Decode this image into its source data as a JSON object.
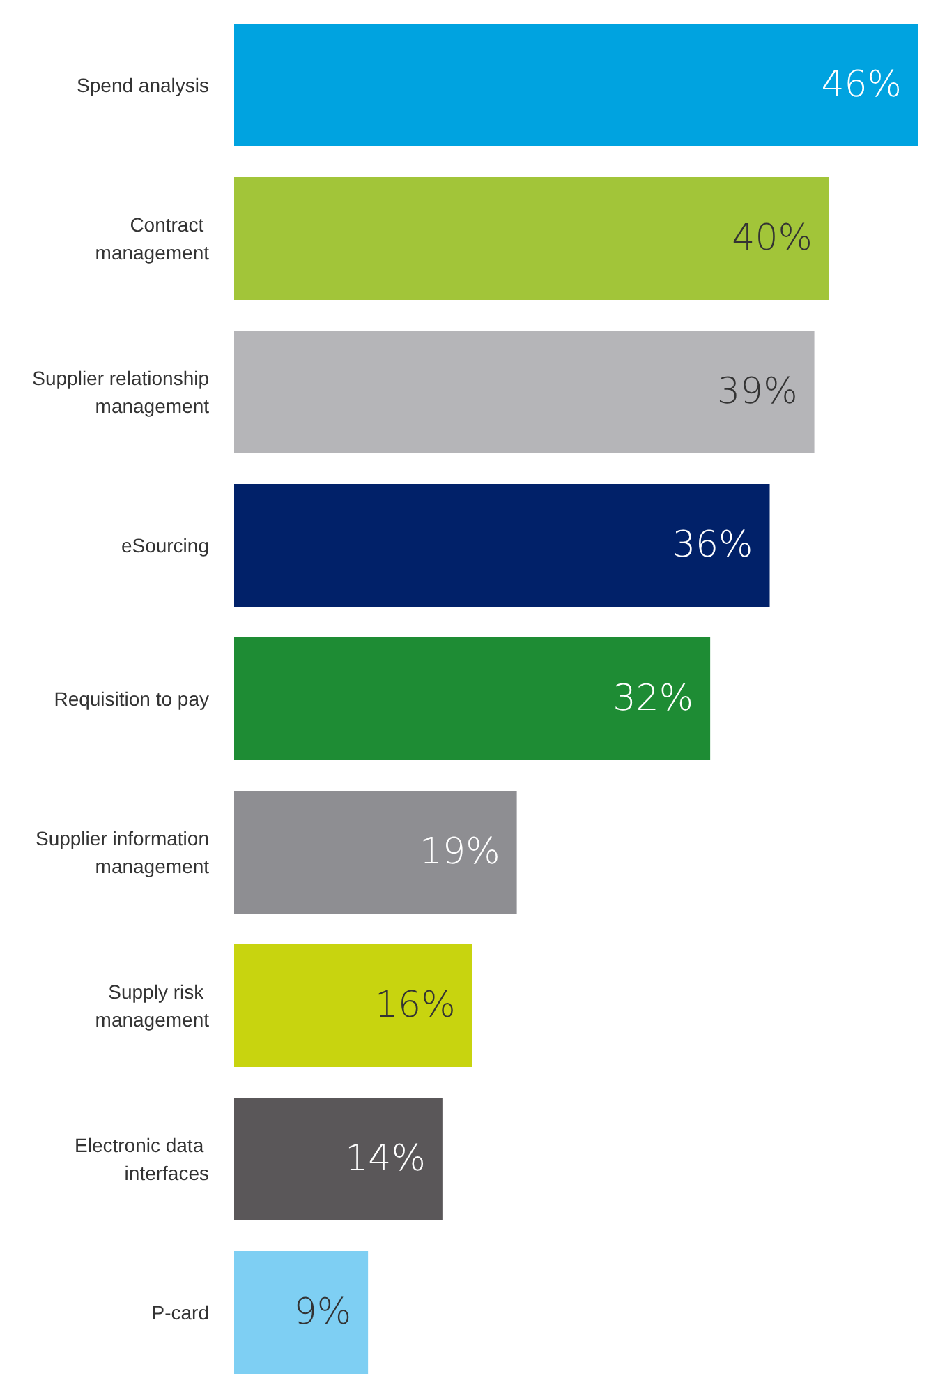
{
  "chart_data": {
    "type": "bar",
    "orientation": "horizontal",
    "categories": [
      "Spend analysis",
      "Contract management",
      "Supplier relationship management",
      "eSourcing",
      "Requisition to pay",
      "Supplier information management",
      "Supply risk management",
      "Electronic data interfaces",
      "P-card"
    ],
    "values": [
      46,
      40,
      39,
      36,
      32,
      19,
      16,
      14,
      9
    ],
    "colors": [
      "#00a3e0",
      "#a2c539",
      "#b5b5b8",
      "#012169",
      "#1e8c34",
      "#8e8e92",
      "#c8d40f",
      "#5a5759",
      "#7ecff3"
    ],
    "value_labels": [
      "46%",
      "40%",
      "39%",
      "36%",
      "32%",
      "19%",
      "16%",
      "14%",
      "9%"
    ]
  }
}
